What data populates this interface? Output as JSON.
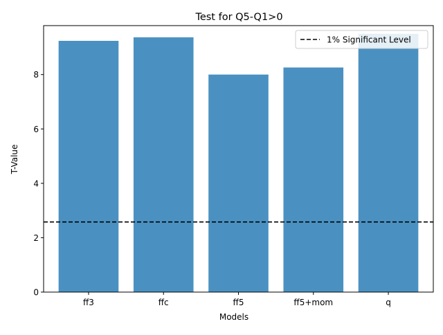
{
  "chart_data": {
    "type": "bar",
    "title": "Test for Q5-Q1>0",
    "xlabel": "Models",
    "ylabel": "T-Value",
    "categories": [
      "ff3",
      "ffc",
      "ff5",
      "ff5+mom",
      "q"
    ],
    "values": [
      9.24,
      9.37,
      8.0,
      8.26,
      9.5
    ],
    "ylim": [
      0,
      9.8
    ],
    "yticks": [
      0,
      2,
      4,
      6,
      8
    ],
    "ytick_labels": [
      "0",
      "2",
      "4",
      "6",
      "8"
    ],
    "bar_color": "#4a91c2",
    "grid": false,
    "legend_position": "top-right",
    "reference_line": {
      "label": "1% Significant Level",
      "value": 2.58,
      "color": "#000000",
      "style": "dashed"
    }
  }
}
